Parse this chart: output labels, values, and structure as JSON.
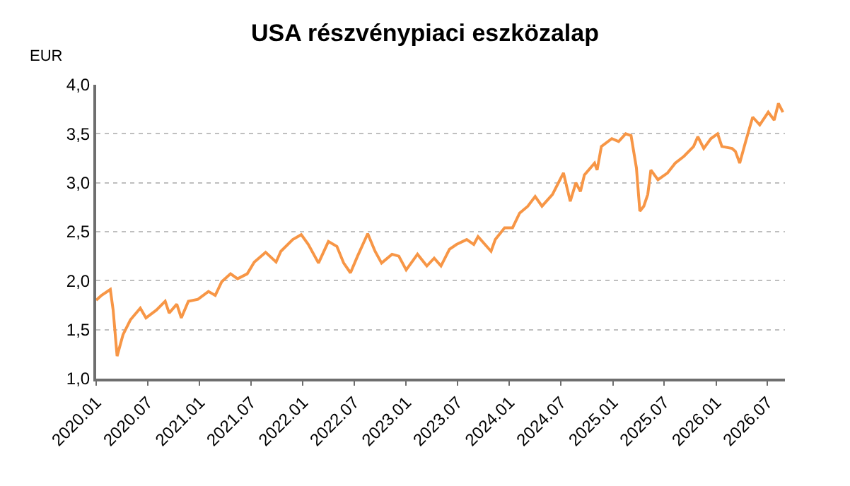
{
  "chart_data": {
    "type": "line",
    "title": "USA részvénypiaci eszközalap",
    "ylabel": "EUR",
    "x": [
      "2020-01-01",
      "2020-01-20",
      "2020-02-20",
      "2020-03-01",
      "2020-03-15",
      "2020-04-05",
      "2020-05-01",
      "2020-06-05",
      "2020-06-25",
      "2020-08-01",
      "2020-09-01",
      "2020-09-15",
      "2020-10-12",
      "2020-10-28",
      "2020-11-22",
      "2020-12-26",
      "2021-02-01",
      "2021-02-25",
      "2021-03-20",
      "2021-04-20",
      "2021-05-15",
      "2021-06-18",
      "2021-07-13",
      "2021-08-22",
      "2021-09-28",
      "2021-10-15",
      "2021-11-26",
      "2021-12-26",
      "2022-01-20",
      "2022-02-25",
      "2022-04-01",
      "2022-05-01",
      "2022-05-25",
      "2022-06-18",
      "2022-07-13",
      "2022-08-18",
      "2022-09-13",
      "2022-10-06",
      "2022-11-12",
      "2022-12-06",
      "2023-01-01",
      "2023-02-10",
      "2023-03-15",
      "2023-04-10",
      "2023-05-04",
      "2023-06-03",
      "2023-06-28",
      "2023-08-03",
      "2023-08-28",
      "2023-09-12",
      "2023-10-28",
      "2023-11-12",
      "2023-12-15",
      "2024-01-12",
      "2024-02-06",
      "2024-03-06",
      "2024-04-01",
      "2024-04-25",
      "2024-06-01",
      "2024-07-10",
      "2024-08-03",
      "2024-08-23",
      "2024-09-08",
      "2024-09-22",
      "2024-10-28",
      "2024-11-06",
      "2024-11-21",
      "2024-12-28",
      "2025-01-21",
      "2025-02-15",
      "2025-03-06",
      "2025-03-25",
      "2025-04-06",
      "2025-04-20",
      "2025-05-04",
      "2025-05-15",
      "2025-06-09",
      "2025-07-13",
      "2025-08-09",
      "2025-09-09",
      "2025-10-13",
      "2025-10-28",
      "2025-11-18",
      "2025-12-13",
      "2026-01-06",
      "2026-01-21",
      "2026-02-26",
      "2026-03-10",
      "2026-03-25",
      "2026-04-15",
      "2026-05-10",
      "2026-06-04",
      "2026-07-04",
      "2026-07-25",
      "2026-08-09",
      "2026-08-25"
    ],
    "series": [
      {
        "color": "#f79646",
        "values": [
          1.8,
          1.85,
          1.91,
          1.7,
          1.23,
          1.45,
          1.6,
          1.72,
          1.62,
          1.7,
          1.79,
          1.67,
          1.76,
          1.62,
          1.79,
          1.81,
          1.89,
          1.85,
          1.99,
          2.07,
          2.02,
          2.07,
          2.19,
          2.29,
          2.19,
          2.3,
          2.42,
          2.47,
          2.37,
          2.18,
          2.4,
          2.35,
          2.18,
          2.08,
          2.25,
          2.48,
          2.3,
          2.18,
          2.27,
          2.25,
          2.11,
          2.27,
          2.15,
          2.23,
          2.15,
          2.32,
          2.37,
          2.42,
          2.37,
          2.45,
          2.3,
          2.42,
          2.54,
          2.54,
          2.69,
          2.76,
          2.86,
          2.76,
          2.88,
          3.1,
          2.81,
          3.0,
          2.91,
          3.08,
          3.2,
          3.13,
          3.37,
          3.45,
          3.42,
          3.5,
          3.48,
          3.15,
          2.71,
          2.76,
          2.88,
          3.13,
          3.03,
          3.1,
          3.2,
          3.27,
          3.37,
          3.47,
          3.35,
          3.45,
          3.5,
          3.37,
          3.35,
          3.32,
          3.2,
          3.42,
          3.67,
          3.59,
          3.72,
          3.64,
          3.81,
          3.72
        ]
      }
    ],
    "xlim": [
      "2020-01-01",
      "2026-09-01"
    ],
    "xticks": [
      {
        "value": "2020-01-01",
        "label": "2020.01"
      },
      {
        "value": "2020-07-01",
        "label": "2020.07"
      },
      {
        "value": "2021-01-01",
        "label": "2021.01"
      },
      {
        "value": "2021-07-01",
        "label": "2021.07"
      },
      {
        "value": "2022-01-01",
        "label": "2022.01"
      },
      {
        "value": "2022-07-01",
        "label": "2022.07"
      },
      {
        "value": "2023-01-01",
        "label": "2023.01"
      },
      {
        "value": "2023-07-01",
        "label": "2023.07"
      },
      {
        "value": "2024-01-01",
        "label": "2024.01"
      },
      {
        "value": "2024-07-01",
        "label": "2024.07"
      },
      {
        "value": "2025-01-01",
        "label": "2025.01"
      },
      {
        "value": "2025-07-01",
        "label": "2025.07"
      },
      {
        "value": "2026-01-01",
        "label": "2026.01"
      },
      {
        "value": "2026-07-01",
        "label": "2026.07"
      }
    ],
    "ylim": [
      1.0,
      4.0
    ],
    "yticks": [
      {
        "value": 1.0,
        "label": "1,0"
      },
      {
        "value": 1.5,
        "label": "1,5"
      },
      {
        "value": 2.0,
        "label": "2,0"
      },
      {
        "value": 2.5,
        "label": "2,5"
      },
      {
        "value": 3.0,
        "label": "3,0"
      },
      {
        "value": 3.5,
        "label": "3,5"
      },
      {
        "value": 4.0,
        "label": "4,0"
      }
    ],
    "grid": "y",
    "marker": "none",
    "line_style": "solid"
  }
}
